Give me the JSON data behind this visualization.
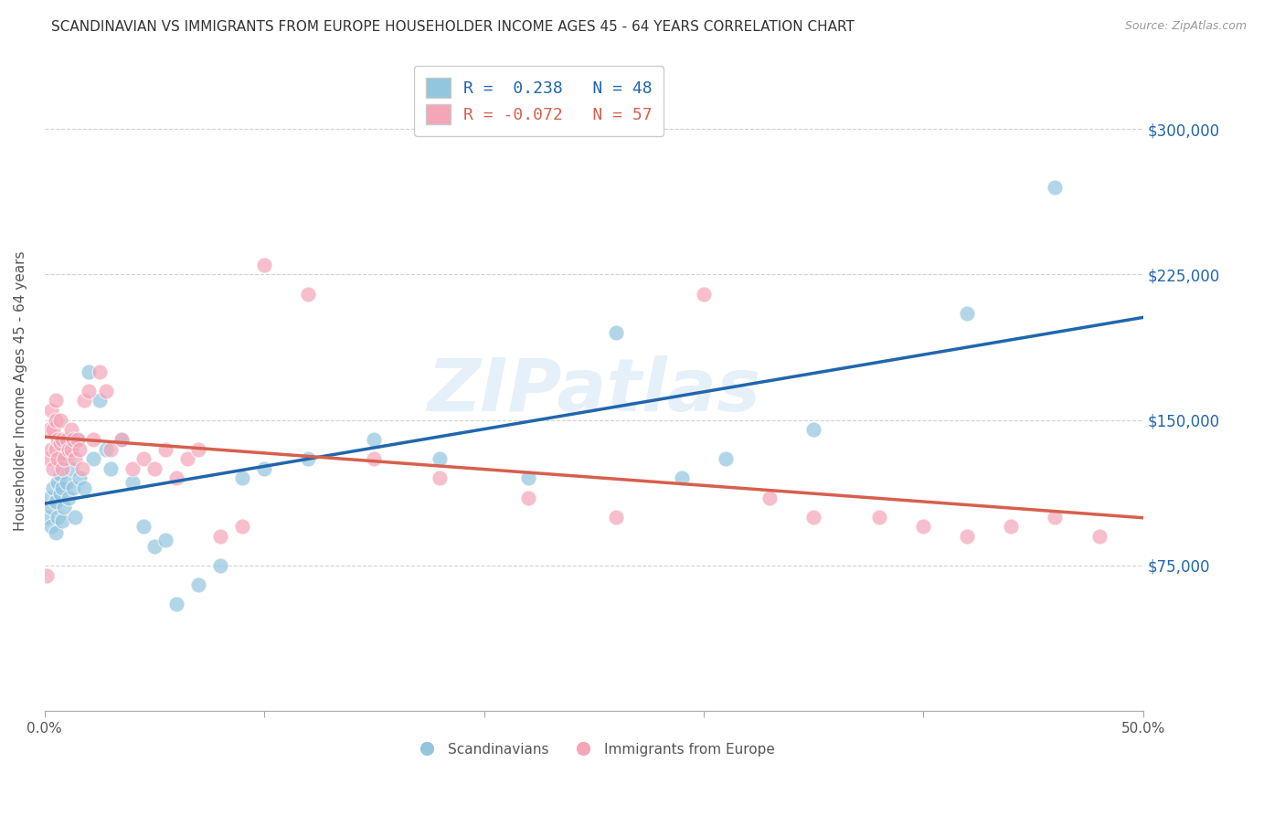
{
  "title": "SCANDINAVIAN VS IMMIGRANTS FROM EUROPE HOUSEHOLDER INCOME AGES 45 - 64 YEARS CORRELATION CHART",
  "source": "Source: ZipAtlas.com",
  "ylabel": "Householder Income Ages 45 - 64 years",
  "xlim": [
    0.0,
    0.5
  ],
  "ylim": [
    0,
    330000
  ],
  "yticks": [
    75000,
    150000,
    225000,
    300000
  ],
  "ytick_labels": [
    "$75,000",
    "$150,000",
    "$225,000",
    "$300,000"
  ],
  "xticks": [
    0.0,
    0.1,
    0.2,
    0.3,
    0.4,
    0.5
  ],
  "xtick_labels": [
    "0.0%",
    "",
    "",
    "",
    "",
    "50.0%"
  ],
  "blue_R": 0.238,
  "blue_N": 48,
  "pink_R": -0.072,
  "pink_N": 57,
  "blue_color": "#92c5de",
  "pink_color": "#f4a5b8",
  "blue_line_color": "#2166ac",
  "pink_line_color": "#d6604d",
  "scandinavians_x": [
    0.001,
    0.002,
    0.003,
    0.003,
    0.004,
    0.005,
    0.005,
    0.006,
    0.006,
    0.007,
    0.007,
    0.008,
    0.008,
    0.009,
    0.01,
    0.01,
    0.011,
    0.012,
    0.013,
    0.014,
    0.015,
    0.016,
    0.018,
    0.02,
    0.022,
    0.025,
    0.028,
    0.03,
    0.035,
    0.04,
    0.045,
    0.05,
    0.055,
    0.06,
    0.07,
    0.08,
    0.09,
    0.1,
    0.12,
    0.15,
    0.18,
    0.22,
    0.26,
    0.29,
    0.31,
    0.35,
    0.42,
    0.46
  ],
  "scandinavians_y": [
    100000,
    110000,
    105000,
    95000,
    115000,
    108000,
    92000,
    118000,
    100000,
    112000,
    122000,
    98000,
    115000,
    105000,
    118000,
    130000,
    110000,
    125000,
    115000,
    100000,
    140000,
    120000,
    115000,
    175000,
    130000,
    160000,
    135000,
    125000,
    140000,
    118000,
    95000,
    85000,
    88000,
    55000,
    65000,
    75000,
    120000,
    125000,
    130000,
    140000,
    130000,
    120000,
    195000,
    120000,
    130000,
    145000,
    205000,
    270000
  ],
  "immigrants_x": [
    0.001,
    0.002,
    0.002,
    0.003,
    0.003,
    0.004,
    0.004,
    0.005,
    0.005,
    0.005,
    0.006,
    0.006,
    0.007,
    0.007,
    0.008,
    0.008,
    0.009,
    0.01,
    0.011,
    0.012,
    0.012,
    0.013,
    0.014,
    0.015,
    0.016,
    0.017,
    0.018,
    0.02,
    0.022,
    0.025,
    0.028,
    0.03,
    0.035,
    0.04,
    0.045,
    0.05,
    0.055,
    0.06,
    0.065,
    0.07,
    0.08,
    0.09,
    0.1,
    0.12,
    0.15,
    0.18,
    0.22,
    0.26,
    0.3,
    0.33,
    0.35,
    0.38,
    0.4,
    0.42,
    0.44,
    0.46,
    0.48
  ],
  "immigrants_y": [
    70000,
    130000,
    145000,
    135000,
    155000,
    125000,
    145000,
    150000,
    135000,
    160000,
    130000,
    140000,
    138000,
    150000,
    125000,
    140000,
    130000,
    140000,
    135000,
    145000,
    135000,
    140000,
    130000,
    140000,
    135000,
    125000,
    160000,
    165000,
    140000,
    175000,
    165000,
    135000,
    140000,
    125000,
    130000,
    125000,
    135000,
    120000,
    130000,
    135000,
    90000,
    95000,
    230000,
    215000,
    130000,
    120000,
    110000,
    100000,
    215000,
    110000,
    100000,
    100000,
    95000,
    90000,
    95000,
    100000,
    90000
  ]
}
